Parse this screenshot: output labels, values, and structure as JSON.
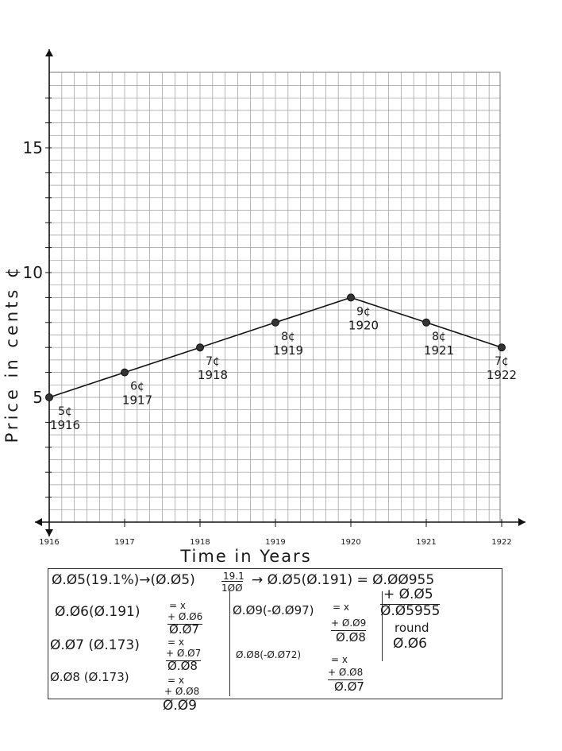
{
  "chart_data": {
    "type": "line",
    "xlabel": "Time in Years",
    "ylabel": "Price in cents ¢",
    "x": [
      1916,
      1917,
      1918,
      1919,
      1920,
      1921,
      1922
    ],
    "x_tick_labels": [
      "1916",
      "1917",
      "1918",
      "1919",
      "1920",
      "1921",
      "1922"
    ],
    "y_tick_labels": [
      "5",
      "10",
      "15"
    ],
    "y_ticks": [
      5,
      10,
      15
    ],
    "ylim": [
      0,
      17.5
    ],
    "xlim": [
      1916,
      1922.3
    ],
    "grid": true,
    "series": [
      {
        "values": [
          5,
          6,
          7,
          8,
          9,
          8,
          7
        ]
      }
    ],
    "point_labels": [
      {
        "price": "5¢",
        "year": "1916"
      },
      {
        "price": "6¢",
        "year": "1917"
      },
      {
        "price": "7¢",
        "year": "1918"
      },
      {
        "price": "8¢",
        "year": "1919"
      },
      {
        "price": "9¢",
        "year": "1920"
      },
      {
        "price": "8¢",
        "year": "1921"
      },
      {
        "price": "7¢",
        "year": "1922"
      }
    ]
  },
  "work": {
    "line1_a": "Ø.Ø5(19.1%)→(Ø.Ø5)",
    "line1_num": "19.1",
    "line1_den": "1ØØ",
    "line1_b": "→ Ø.Ø5(Ø.191) = Ø.ØØ955",
    "add_a": "+ Ø.Ø5",
    "sum_a": "Ø.Ø5955",
    "round_word": "round",
    "round_val": "Ø.Ø6",
    "l2": "Ø.Ø6(Ø.191)",
    "l2_x": "= x",
    "l2_add": "+ Ø.Ø6",
    "l2_res": "Ø.Ø7",
    "l3": "Ø.Ø7 (Ø.173)",
    "l3_x": "= x",
    "l3_add": "+ Ø.Ø7",
    "l3_res": "Ø.Ø8",
    "l4": "Ø.Ø8 (Ø.173)",
    "l4_x": "= x",
    "l4_add": "+ Ø.Ø8",
    "l4_res": "Ø.Ø9",
    "r1": "Ø.Ø9(-Ø.Ø97)",
    "r1_x": "= x",
    "r1_add": "+ Ø.Ø9",
    "r1_res": "Ø.Ø8",
    "r2": "Ø.Ø8(-Ø.Ø72)",
    "r2_x": "= x",
    "r2_add": "+ Ø.Ø8",
    "r2_res": "Ø.Ø7"
  }
}
